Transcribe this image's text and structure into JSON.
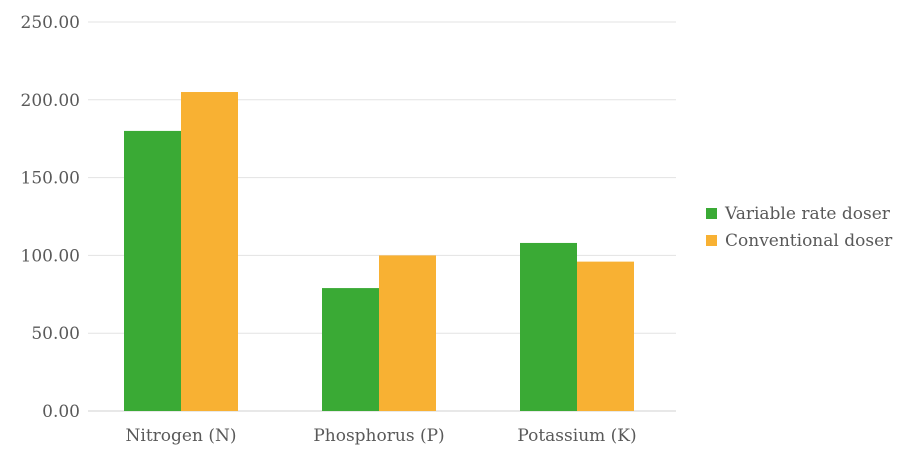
{
  "chart_data": {
    "type": "bar",
    "title": "",
    "xlabel": "",
    "ylabel": "",
    "categories": [
      "Nitrogen (N)",
      "Phosphorus (P)",
      "Potassium (K)"
    ],
    "series": [
      {
        "name": "Variable rate doser",
        "values": [
          180,
          79,
          108
        ],
        "color": "#3aaa35"
      },
      {
        "name": "Conventional doser",
        "values": [
          205,
          100,
          96
        ],
        "color": "#f8b133"
      }
    ],
    "ylim": [
      0,
      250
    ],
    "yticks": [
      "0.00",
      "50.00",
      "100.00",
      "150.00",
      "200.00",
      "250.00"
    ],
    "grid": true,
    "legend_position": "right"
  }
}
